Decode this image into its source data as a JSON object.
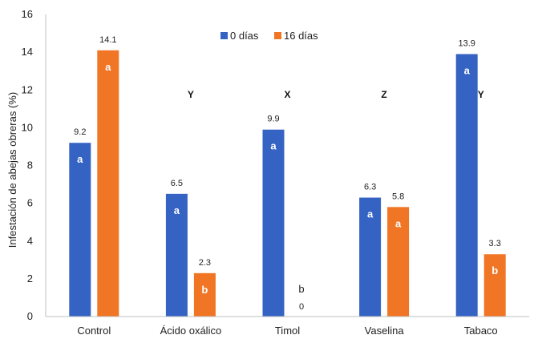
{
  "chart_data": {
    "type": "bar",
    "ylabel": "Infestación de abejas obreras (%)",
    "xlabel": "",
    "ylim": [
      0,
      16
    ],
    "yticks": [
      0,
      2,
      4,
      6,
      8,
      10,
      12,
      14,
      16
    ],
    "grid": false,
    "legend_position": "top-center",
    "categories": [
      "Control",
      "Ácido oxálico",
      "Timol",
      "Vaselina",
      "Tabaco"
    ],
    "series": [
      {
        "name": "0 días",
        "color": "#3563C3",
        "values": [
          9.2,
          6.5,
          9.9,
          6.3,
          13.9
        ],
        "value_labels": [
          "9.2",
          "6.5",
          "9.9",
          "6.3",
          "13.9"
        ],
        "letters": [
          "a",
          "a",
          "a",
          "a",
          "a"
        ]
      },
      {
        "name": "16 días",
        "color": "#F07524",
        "values": [
          14.1,
          2.3,
          0,
          5.8,
          3.3
        ],
        "value_labels": [
          "14.1",
          "2.3",
          "0",
          "5.8",
          "3.3"
        ],
        "letters": [
          "a",
          "b",
          "b",
          "a",
          "b"
        ]
      }
    ],
    "group_letters": [
      "",
      "Y",
      "X",
      "Z",
      "Y"
    ]
  }
}
